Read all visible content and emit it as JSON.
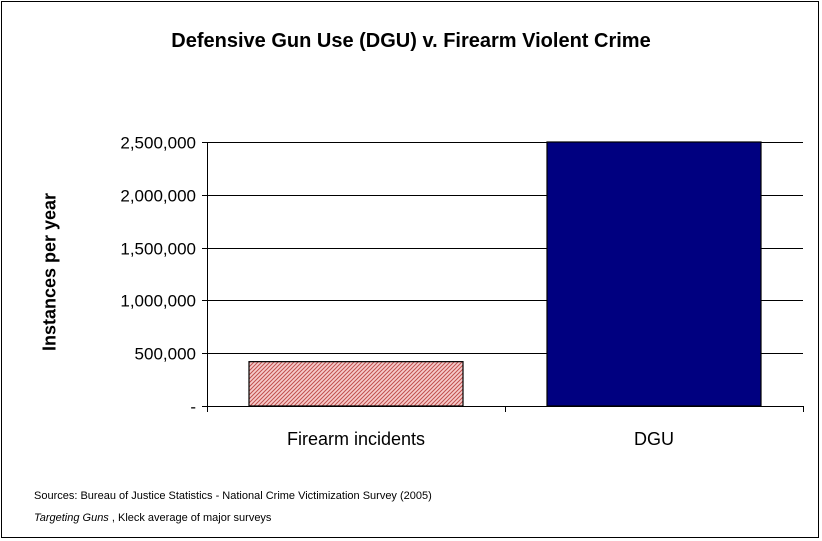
{
  "chart_data": {
    "type": "bar",
    "title": "Defensive Gun Use (DGU) v. Firearm Violent Crime",
    "xlabel": "",
    "ylabel": "Instances per year",
    "categories": [
      "Firearm incidents",
      "DGU"
    ],
    "values": [
      420000,
      2500000
    ],
    "ylim": [
      0,
      2500000
    ],
    "yticks": [
      0,
      500000,
      1000000,
      1500000,
      2000000,
      2500000
    ],
    "ytick_labels": [
      "-",
      "500,000",
      "1,000,000",
      "1,500,000",
      "2,000,000",
      "2,500,000"
    ],
    "grid": true,
    "legend": "none",
    "bar_styles": [
      {
        "fill": "#f6c9c9",
        "stroke": "#c0504d",
        "pattern": "diagonal-hatch",
        "border": "#000000"
      },
      {
        "fill": "#000080",
        "border": "#000000"
      }
    ]
  },
  "sources": {
    "line1": "Sources: Bureau of Justice Statistics - National Crime Victimization Survey (2005)",
    "line2_italic": "Targeting Guns",
    "line2_rest": " , Kleck average of major surveys"
  }
}
